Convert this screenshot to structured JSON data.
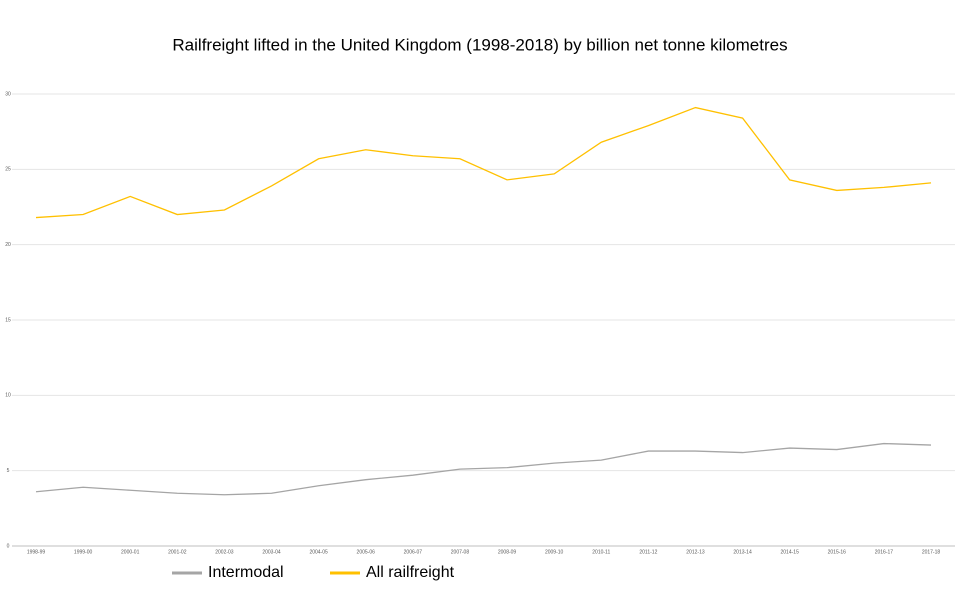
{
  "chart_data": {
    "type": "line",
    "title": "Railfreight lifted in the United Kingdom (1998-2018) by billion net tonne kilometres",
    "categories": [
      "1998-99",
      "1999-00",
      "2000-01",
      "2001-02",
      "2002-03",
      "2003-04",
      "2004-05",
      "2005-06",
      "2006-07",
      "2007-08",
      "2008-09",
      "2009-10",
      "2010-11",
      "2011-12",
      "2012-13",
      "2013-14",
      "2014-15",
      "2015-16",
      "2016-17",
      "2017-18"
    ],
    "series": [
      {
        "name": "Intermodal",
        "color": "#a5a5a5",
        "values": [
          3.6,
          3.9,
          3.7,
          3.5,
          3.4,
          3.5,
          4.0,
          4.4,
          4.7,
          5.1,
          5.2,
          5.5,
          5.7,
          6.3,
          6.3,
          6.2,
          6.5,
          6.4,
          6.8,
          6.7
        ]
      },
      {
        "name": "All railfreight",
        "color": "#ffc000",
        "values": [
          21.8,
          22.0,
          23.2,
          22.0,
          22.3,
          23.9,
          25.7,
          26.3,
          25.9,
          25.7,
          24.3,
          24.7,
          26.8,
          27.9,
          29.1,
          28.4,
          24.3,
          23.6,
          23.8,
          24.1
        ]
      }
    ],
    "ylim": [
      0,
      30
    ],
    "yticks": [
      0,
      5,
      10,
      15,
      20,
      25,
      30
    ],
    "grid": true,
    "legend": "bottom"
  }
}
